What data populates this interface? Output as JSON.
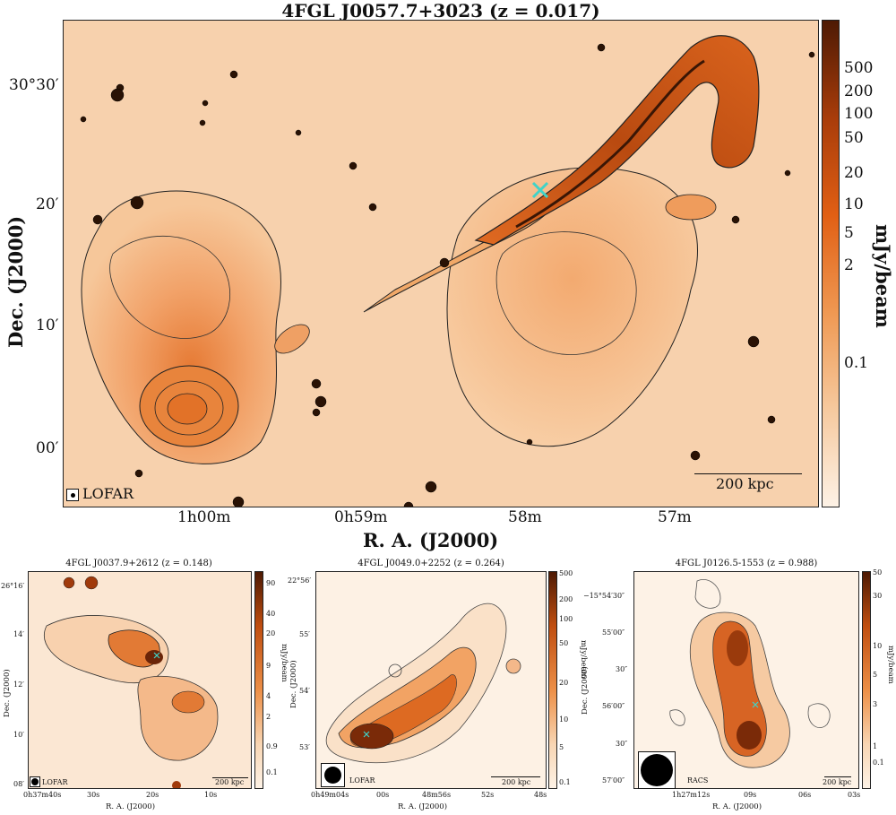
{
  "main": {
    "title": "4FGL J0057.7+3023 (z = 0.017)",
    "ylabel": "Dec. (J2000)",
    "xlabel": "R. A. (J2000)",
    "yticks": [
      "30°30′",
      "20′",
      "10′",
      "00′"
    ],
    "xticks": [
      "1h00m",
      "0h59m",
      "58m",
      "57m"
    ],
    "colorbar_label": "mJy/beam",
    "colorbar_ticks": [
      "500",
      "200",
      "100",
      "50",
      "20",
      "10",
      "5",
      "2",
      "0.1"
    ],
    "telescope": "LOFAR",
    "scale": "200 kpc"
  },
  "panels": [
    {
      "title": "4FGL J0037.9+2612 (z = 0.148)",
      "ylabel": "Dec. (J2000)",
      "xlabel": "R. A. (J2000)",
      "yticks": [
        "26°16′",
        "14′",
        "12′",
        "10′",
        "08′"
      ],
      "xticks": [
        "0h37m40s",
        "30s",
        "20s",
        "10s"
      ],
      "colorbar_label": "mJy/beam",
      "colorbar_ticks": [
        "90",
        "40",
        "20",
        "9",
        "4",
        "2",
        "0.9",
        "0.1"
      ],
      "telescope": "LOFAR",
      "scale": "200 kpc"
    },
    {
      "title": "4FGL J0049.0+2252 (z = 0.264)",
      "ylabel": "Dec. (J2000)",
      "xlabel": "R. A. (J2000)",
      "yticks": [
        "22°56′",
        "55′",
        "54′",
        "53′"
      ],
      "xticks": [
        "0h49m04s",
        "00s",
        "48m56s",
        "52s",
        "48s"
      ],
      "colorbar_label": "mJy/beam",
      "colorbar_ticks": [
        "500",
        "200",
        "100",
        "50",
        "20",
        "10",
        "5",
        "0.1"
      ],
      "telescope": "LOFAR",
      "scale": "200 kpc"
    },
    {
      "title": "4FGL J0126.5-1553 (z = 0.988)",
      "ylabel": "Dec. (J2000)",
      "xlabel": "R. A. (J2000)",
      "yticks": [
        "−15°54′30″",
        "55′00″",
        "30″",
        "56′00″",
        "30″",
        "57′00″"
      ],
      "xticks": [
        "1h27m12s",
        "09s",
        "06s",
        "03s"
      ],
      "colorbar_label": "mJy/beam",
      "colorbar_ticks": [
        "50",
        "30",
        "10",
        "5",
        "3",
        "1",
        "0.1"
      ],
      "telescope": "RACS",
      "scale": "200 kpc"
    }
  ],
  "colors": {
    "cmap_high": "#5a1e05",
    "cmap_mid": "#e97a2c",
    "cmap_low": "#fdf0e2",
    "contour": "#2a2a2a",
    "marker": "#3fd3c8"
  }
}
